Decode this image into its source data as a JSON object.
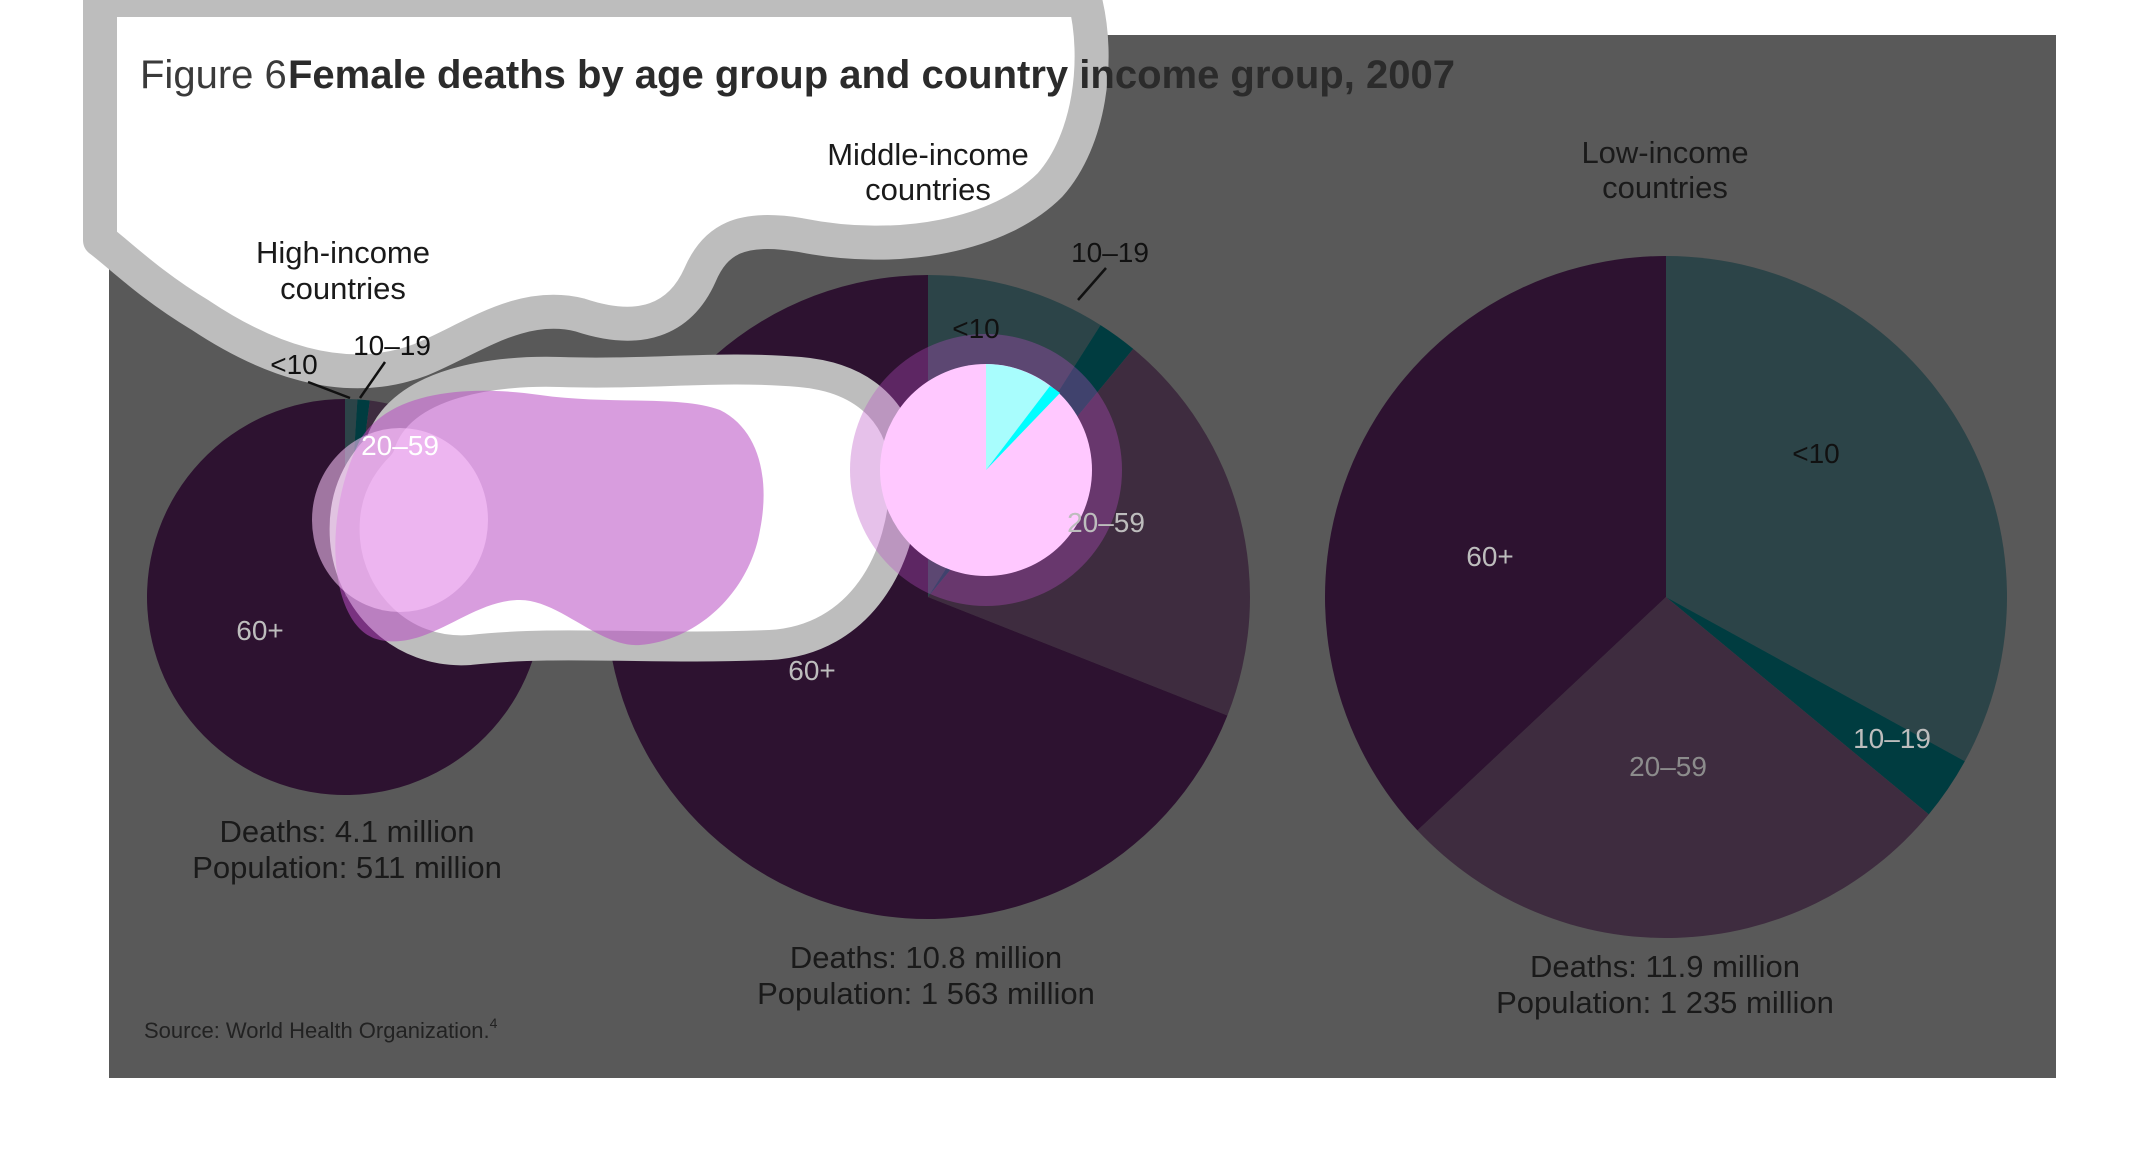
{
  "figure": {
    "prefix": "Figure 6",
    "title": "Female deaths by age group and country income group, 2007",
    "source": "Source: World Health Organization.",
    "source_ref": "4"
  },
  "colors": {
    "panel": "#595959",
    "age_lt10": "#2c4448",
    "age_10_19": "#003c40",
    "age_20_59": "#3e2c3f",
    "age_60plus": "#2d1230",
    "highlight_cyan": "#a8fdfd",
    "highlight_pink": "#ffc8ff",
    "highlight_magenta": "#b84cc2",
    "cloud_gray": "#bdbdbd"
  },
  "chart_data": [
    {
      "type": "pie",
      "title": "High-income countries",
      "title_lines": [
        "High-income",
        "countries"
      ],
      "categories": [
        "<10",
        "10–19",
        "20–59",
        "60+"
      ],
      "values": [
        1,
        1,
        20,
        78
      ],
      "deaths_label": "Deaths: 4.1 million",
      "population_label": "Population: 511 million"
    },
    {
      "type": "pie",
      "title": "Middle-income countries",
      "title_lines": [
        "Middle-income",
        "countries"
      ],
      "categories": [
        "<10",
        "10–19",
        "20–59",
        "60+"
      ],
      "values": [
        9,
        2,
        20,
        69
      ],
      "deaths_label": "Deaths: 10.8 million",
      "population_label": "Population: 1 563 million"
    },
    {
      "type": "pie",
      "title": "Low-income countries",
      "title_lines": [
        "Low-income",
        "countries"
      ],
      "categories": [
        "<10",
        "10–19",
        "20–59",
        "60+"
      ],
      "values": [
        33,
        3,
        27,
        37
      ],
      "deaths_label": "Deaths: 11.9 million",
      "population_label": "Population: 1 235 million"
    }
  ]
}
